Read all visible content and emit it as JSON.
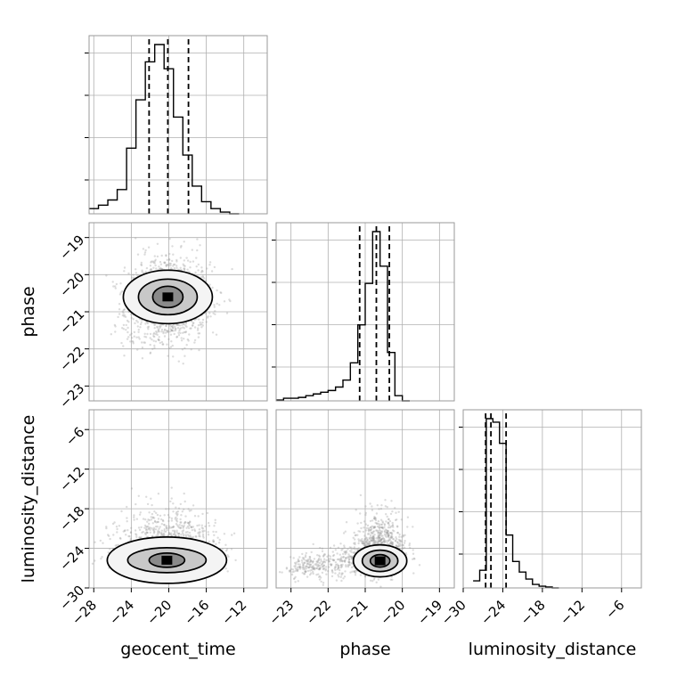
{
  "chart_data": {
    "type": "corner",
    "parameters": [
      "geocent_time",
      "phase",
      "luminosity_distance"
    ],
    "axis_labels": {
      "geocent_time": "geocent_time",
      "phase": "phase",
      "luminosity_distance": "luminosity_distance"
    },
    "ranges": {
      "geocent_time": [
        -28.5,
        -9.5
      ],
      "phase": [
        -23.4,
        -18.6
      ],
      "luminosity_distance": [
        -30,
        -3
      ]
    },
    "ticks": {
      "geocent_time": [
        -28,
        -24,
        -20,
        -16,
        -12
      ],
      "phase": [
        -23,
        -22,
        -21,
        -20,
        -19
      ],
      "luminosity_distance": [
        -30,
        -24,
        -18,
        -12,
        -6
      ]
    },
    "tick_labels": {
      "geocent_time": [
        "−28",
        "−24",
        "−20",
        "−16",
        "−12"
      ],
      "phase": [
        "−23",
        "−22",
        "−21",
        "−20",
        "−19"
      ],
      "luminosity_distance": [
        "−30",
        "−24",
        "−18",
        "−12",
        "−6"
      ]
    },
    "grid": true,
    "quantiles": {
      "geocent_time": [
        -22.1,
        -20.1,
        -17.9
      ],
      "phase": [
        -21.15,
        -20.7,
        -20.35
      ],
      "luminosity_distance": [
        -26.6,
        -25.8,
        -23.5
      ]
    },
    "histograms": {
      "geocent_time": {
        "bin_edges": [
          -28.5,
          -27.5,
          -26.5,
          -25.5,
          -24.5,
          -23.5,
          -22.5,
          -21.5,
          -20.5,
          -19.5,
          -18.5,
          -17.5,
          -16.5,
          -15.5,
          -14.5,
          -13.5,
          -12.5
        ],
        "counts": [
          3,
          5,
          8,
          14,
          38,
          66,
          88,
          98,
          84,
          56,
          34,
          16,
          7,
          3,
          1,
          0
        ]
      },
      "phase": {
        "bin_edges": [
          -23.4,
          -23.2,
          -23.0,
          -22.8,
          -22.6,
          -22.4,
          -22.2,
          -22.0,
          -21.8,
          -21.6,
          -21.4,
          -21.2,
          -21.0,
          -20.8,
          -20.6,
          -20.4,
          -20.2,
          -20.0,
          -19.8
        ],
        "counts": [
          0.5,
          1.5,
          1.5,
          2,
          3,
          4,
          5,
          6,
          8,
          12,
          22,
          44,
          68,
          98,
          78,
          28,
          3,
          0
        ]
      },
      "luminosity_distance": {
        "bin_edges": [
          -28.5,
          -27.5,
          -26.5,
          -25.5,
          -24.5,
          -23.5,
          -22.5,
          -21.5,
          -20.5,
          -19.5,
          -18.5,
          -17.5,
          -16.5,
          -15.5
        ],
        "counts": [
          4,
          10,
          96,
          94,
          82,
          30,
          15,
          9,
          5,
          2,
          1,
          0.5,
          0
        ]
      }
    },
    "density_peaks": {
      "geocent_time|phase": [
        -20.1,
        -20.6
      ],
      "geocent_time|luminosity_distance": [
        -20.2,
        -25.8
      ],
      "phase|luminosity_distance": [
        -20.6,
        -25.9
      ]
    },
    "colors": {
      "line": "#000000",
      "grid": "#b0b0b0",
      "frame": "#9a9a9a",
      "samples": "#9a9a9a"
    }
  }
}
